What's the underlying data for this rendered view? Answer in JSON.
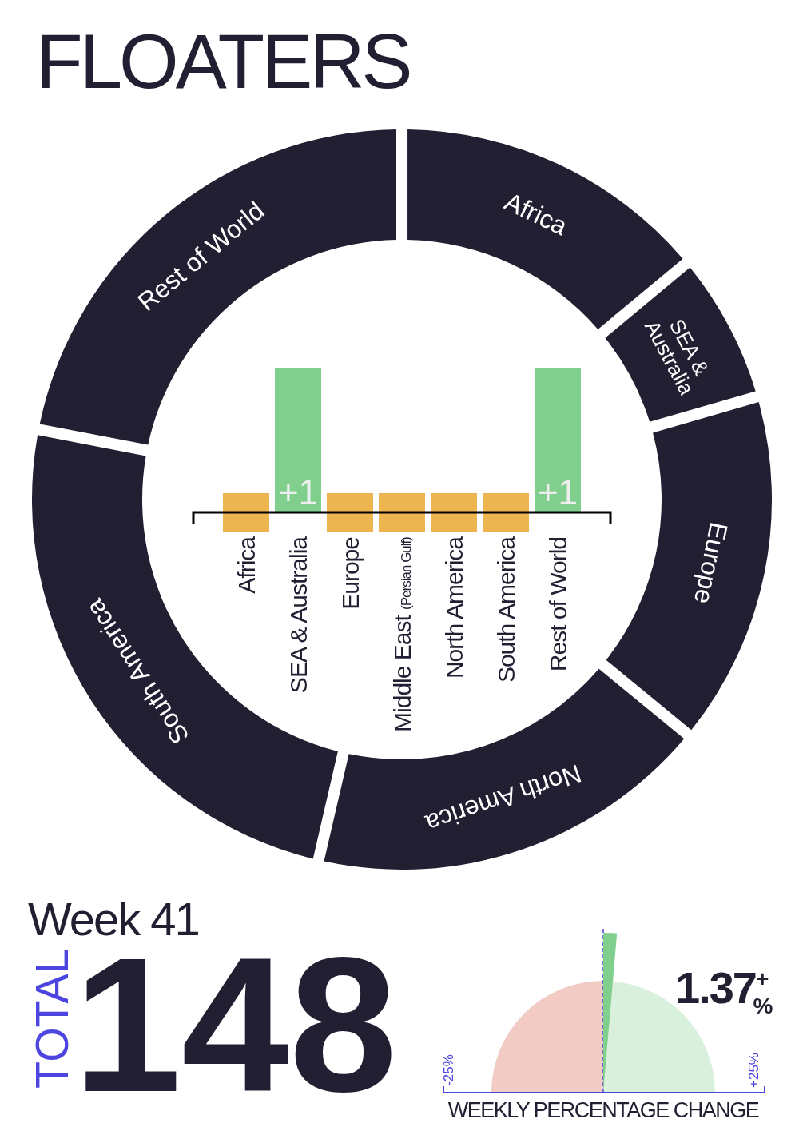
{
  "chart_data": [
    {
      "type": "donut",
      "title": "FLOATERS",
      "categories": [
        "Africa",
        "SEA & Australia",
        "Europe",
        "North America",
        "South America",
        "Rest of World"
      ],
      "values": [
        13.9,
        6.3,
        15.4,
        17.7,
        24.6,
        22.1
      ],
      "colors": [
        "#221f33",
        "#221f33",
        "#221f33",
        "#221f33",
        "#221f33",
        "#221f33"
      ],
      "legend": false
    },
    {
      "type": "bar",
      "categories": [
        "Africa",
        "SEA & Australia",
        "Europe",
        "Middle East (Persian Gulf)",
        "North America",
        "South America",
        "Rest of World"
      ],
      "values": [
        0,
        1,
        0,
        0,
        0,
        0,
        1
      ],
      "colors": [
        "#ecb54f",
        "#80cf8c",
        "#ecb54f",
        "#ecb54f",
        "#ecb54f",
        "#ecb54f",
        "#80cf8c"
      ],
      "value_labels": [
        null,
        "+1",
        null,
        null,
        null,
        null,
        "+1"
      ]
    },
    {
      "type": "other",
      "title": "Week 41",
      "annotations": [
        "TOTAL",
        "148"
      ]
    },
    {
      "type": "other",
      "xlabel": "WEEKLY PERCENTAGE CHANGE",
      "annotations": [
        "-25%",
        "+25%",
        "1.37$^{+}$$_{%}$"
      ]
    }
  ]
}
